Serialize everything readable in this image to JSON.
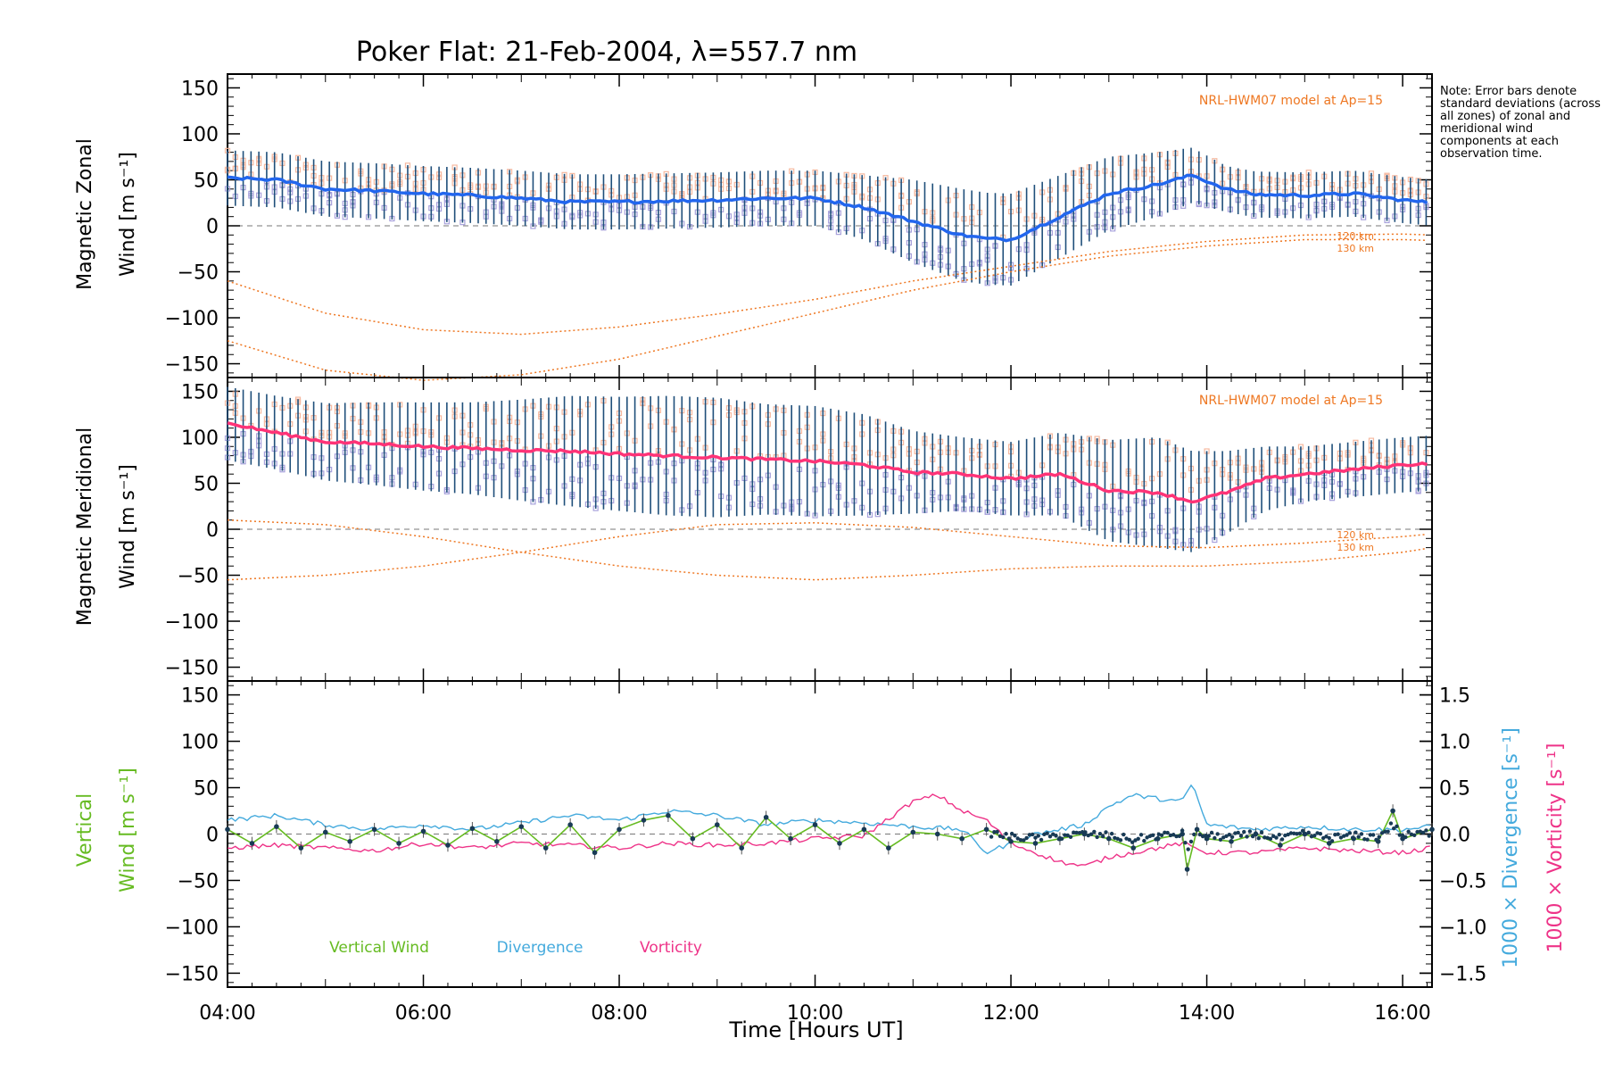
{
  "title": "Poker Flat: 21-Feb-2004, λ=557.7 nm",
  "note": "Note: Error bars denote standard deviations (across all zones) of zonal and meridional wind components at each observation time.",
  "colors": {
    "zonal": "#2266ee",
    "meridional": "#ff3377",
    "vertical": "#66bb22",
    "divergence": "#44aadd",
    "vorticity": "#ee3388",
    "errorbar": "#1f4f7a",
    "model": "#ee7722",
    "zonesA": "#f6b9a0",
    "zonesB": "#a8a2dc",
    "axis": "#000000"
  },
  "chart_data": [
    {
      "type": "line",
      "panel": "zonal",
      "ylabel_line1": "Magnetic Zonal",
      "ylabel_line2": "Wind [m s⁻¹]",
      "xlim": [
        4.0,
        16.3
      ],
      "ylim": [
        -165,
        165
      ],
      "yticks": [
        -150,
        -100,
        -50,
        0,
        50,
        100,
        150
      ],
      "model_label": "NRL-HWM07 model at Ap=15",
      "altitude_labels": [
        "120 km",
        "130 km"
      ],
      "series": [
        {
          "name": "Magnetic Zonal Wind",
          "x": [
            4.0,
            4.5,
            5.0,
            5.5,
            6.0,
            6.5,
            7.0,
            7.5,
            8.0,
            8.5,
            9.0,
            9.5,
            10.0,
            10.5,
            11.0,
            11.5,
            11.75,
            12.0,
            12.5,
            13.0,
            13.5,
            13.85,
            14.2,
            14.5,
            15.0,
            15.5,
            16.0,
            16.3
          ],
          "y": [
            52,
            50,
            40,
            38,
            35,
            33,
            30,
            26,
            26,
            27,
            28,
            30,
            30,
            20,
            5,
            -10,
            -14,
            -15,
            10,
            35,
            45,
            55,
            40,
            34,
            33,
            35,
            28,
            25
          ],
          "std": [
            30,
            30,
            30,
            30,
            30,
            30,
            30,
            30,
            30,
            30,
            30,
            30,
            30,
            35,
            45,
            50,
            50,
            50,
            45,
            40,
            35,
            30,
            25,
            25,
            25,
            25,
            25,
            25
          ]
        },
        {
          "name": "NRL-HWM07 120 km",
          "x": [
            4.0,
            5.0,
            6.0,
            7.0,
            8.0,
            9.0,
            10.0,
            11.0,
            12.0,
            13.0,
            14.0,
            15.0,
            16.0,
            16.3
          ],
          "y": [
            -60,
            -95,
            -113,
            -118,
            -110,
            -96,
            -80,
            -60,
            -44,
            -28,
            -17,
            -10,
            -9,
            -10
          ]
        },
        {
          "name": "NRL-HWM07 130 km",
          "x": [
            4.0,
            5.0,
            6.0,
            7.0,
            8.0,
            9.0,
            10.0,
            11.0,
            12.0,
            13.0,
            14.0,
            15.0,
            16.0,
            16.3
          ],
          "y": [
            -125,
            -157,
            -168,
            -162,
            -145,
            -120,
            -95,
            -70,
            -50,
            -33,
            -22,
            -15,
            -15,
            -16
          ]
        }
      ]
    },
    {
      "type": "line",
      "panel": "meridional",
      "ylabel_line1": "Magnetic Meridional",
      "ylabel_line2": "Wind [m s⁻¹]",
      "xlim": [
        4.0,
        16.3
      ],
      "ylim": [
        -165,
        165
      ],
      "yticks": [
        -150,
        -100,
        -50,
        0,
        50,
        100,
        150
      ],
      "model_label": "NRL-HWM07 model at Ap=15",
      "altitude_labels": [
        "120 km",
        "130 km"
      ],
      "series": [
        {
          "name": "Magnetic Meridional Wind",
          "x": [
            4.0,
            4.5,
            5.0,
            5.5,
            6.0,
            6.5,
            7.0,
            7.5,
            8.0,
            8.5,
            9.0,
            9.5,
            10.0,
            10.5,
            11.0,
            11.5,
            12.0,
            12.5,
            13.0,
            13.5,
            13.85,
            14.2,
            14.6,
            15.0,
            15.5,
            16.0,
            16.3
          ],
          "y": [
            115,
            105,
            95,
            93,
            90,
            88,
            86,
            85,
            82,
            80,
            78,
            76,
            74,
            70,
            62,
            60,
            55,
            60,
            42,
            40,
            30,
            40,
            55,
            60,
            65,
            70,
            72
          ],
          "std": [
            40,
            40,
            42,
            45,
            48,
            50,
            55,
            60,
            62,
            65,
            65,
            60,
            60,
            55,
            45,
            40,
            40,
            45,
            55,
            60,
            55,
            45,
            35,
            30,
            30,
            30,
            30
          ]
        },
        {
          "name": "NRL-HWM07 120 km",
          "x": [
            4.0,
            5.0,
            6.0,
            7.0,
            8.0,
            9.0,
            10.0,
            11.0,
            12.0,
            13.0,
            14.0,
            15.0,
            16.0,
            16.3
          ],
          "y": [
            -55,
            -50,
            -40,
            -25,
            -8,
            5,
            7,
            2,
            -8,
            -18,
            -20,
            -15,
            -8,
            -5
          ]
        },
        {
          "name": "NRL-HWM07 130 km",
          "x": [
            4.0,
            5.0,
            6.0,
            7.0,
            8.0,
            9.0,
            10.0,
            11.0,
            12.0,
            13.0,
            14.0,
            15.0,
            16.0,
            16.3
          ],
          "y": [
            10,
            5,
            -8,
            -25,
            -40,
            -50,
            -55,
            -50,
            -43,
            -40,
            -40,
            -35,
            -25,
            -20
          ]
        }
      ]
    },
    {
      "type": "line",
      "panel": "vertical",
      "ylabel_line1": "Vertical",
      "ylabel_line2": "Wind [m s⁻¹]",
      "right_label_1": "1000 × Divergence [s⁻¹]",
      "right_label_2": "1000 × Vorticity [s⁻¹]",
      "xlim": [
        4.0,
        16.3
      ],
      "ylim": [
        -165,
        165
      ],
      "yticks": [
        -150,
        -100,
        -50,
        0,
        50,
        100,
        150
      ],
      "y2lim": [
        -1.65,
        1.65
      ],
      "y2ticks": [
        -1.5,
        -1.0,
        -0.5,
        0.0,
        0.5,
        1.0,
        1.5
      ],
      "xticks": [
        "04:00",
        "06:00",
        "08:00",
        "10:00",
        "12:00",
        "14:00",
        "16:00"
      ],
      "xtick_values": [
        4,
        6,
        8,
        10,
        12,
        14,
        16
      ],
      "xlabel": "Time [Hours UT]",
      "legend": [
        "Vertical Wind",
        "Divergence",
        "Vorticity"
      ],
      "series": [
        {
          "name": "Vertical Wind",
          "x": [
            4.0,
            4.25,
            4.5,
            4.75,
            5.0,
            5.25,
            5.5,
            5.75,
            6.0,
            6.25,
            6.5,
            6.75,
            7.0,
            7.25,
            7.5,
            7.75,
            8.0,
            8.25,
            8.5,
            8.75,
            9.0,
            9.25,
            9.5,
            9.75,
            10.0,
            10.25,
            10.5,
            10.75,
            11.0,
            11.25,
            11.5,
            11.75,
            12.0,
            12.25,
            12.5,
            12.75,
            13.0,
            13.25,
            13.5,
            13.75,
            13.8,
            13.9,
            14.0,
            14.25,
            14.5,
            14.75,
            15.0,
            15.25,
            15.5,
            15.75,
            15.9,
            16.0,
            16.3
          ],
          "y": [
            5,
            -10,
            8,
            -15,
            2,
            -8,
            5,
            -10,
            3,
            -12,
            6,
            -8,
            8,
            -15,
            10,
            -20,
            5,
            15,
            20,
            -5,
            10,
            -15,
            18,
            -5,
            10,
            -10,
            5,
            -15,
            2,
            0,
            -5,
            5,
            -8,
            -10,
            -5,
            0,
            -5,
            -15,
            -5,
            0,
            -38,
            5,
            -5,
            -8,
            0,
            -12,
            0,
            -10,
            -5,
            -8,
            25,
            -5,
            5
          ]
        },
        {
          "name": "Divergence",
          "x": [
            4.0,
            4.5,
            5.0,
            5.5,
            6.0,
            6.5,
            7.0,
            7.5,
            8.0,
            8.5,
            9.0,
            9.5,
            10.0,
            10.5,
            11.0,
            11.5,
            11.75,
            12.0,
            12.25,
            12.5,
            12.75,
            13.0,
            13.25,
            13.5,
            13.75,
            13.85,
            14.0,
            14.5,
            15.0,
            15.5,
            16.0,
            16.3
          ],
          "y": [
            0.15,
            0.2,
            0.1,
            0.05,
            0.1,
            0.05,
            0.12,
            0.2,
            0.15,
            0.25,
            0.2,
            0.1,
            0.15,
            0.12,
            0.08,
            0.05,
            -0.2,
            -0.1,
            0.0,
            0.05,
            0.1,
            0.3,
            0.42,
            0.38,
            0.35,
            0.55,
            0.1,
            0.05,
            0.08,
            0.05,
            0.05,
            0.08
          ]
        },
        {
          "name": "Vorticity",
          "x": [
            4.0,
            4.5,
            5.0,
            5.5,
            6.0,
            6.5,
            7.0,
            7.5,
            8.0,
            8.5,
            9.0,
            9.5,
            10.0,
            10.5,
            11.0,
            11.25,
            11.5,
            11.75,
            12.0,
            12.25,
            12.5,
            12.75,
            13.0,
            13.25,
            13.5,
            13.75,
            14.0,
            14.5,
            15.0,
            15.5,
            16.0,
            16.3
          ],
          "y": [
            -0.15,
            -0.12,
            -0.15,
            -0.18,
            -0.1,
            -0.15,
            -0.1,
            -0.12,
            -0.15,
            -0.1,
            -0.12,
            -0.1,
            -0.05,
            -0.02,
            0.35,
            0.42,
            0.25,
            0.15,
            -0.1,
            -0.2,
            -0.3,
            -0.35,
            -0.25,
            -0.2,
            -0.15,
            -0.1,
            -0.2,
            -0.2,
            -0.15,
            -0.18,
            -0.2,
            -0.15
          ]
        }
      ]
    }
  ]
}
